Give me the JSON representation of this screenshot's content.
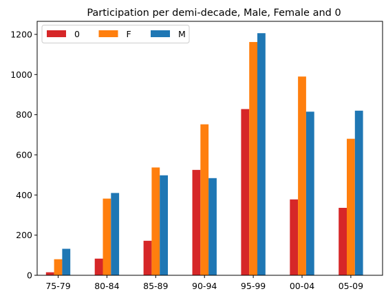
{
  "chart_data": {
    "type": "bar",
    "title": "Participation per demi-decade, Male, Female and 0",
    "xlabel": "",
    "ylabel": "",
    "categories": [
      "75-79",
      "80-84",
      "85-89",
      "90-94",
      "95-99",
      "00-04",
      "05-09"
    ],
    "series": [
      {
        "name": "0",
        "color": "#d62728",
        "values": [
          15,
          83,
          172,
          525,
          828,
          378,
          336
        ]
      },
      {
        "name": "F",
        "color": "#ff7f0e",
        "values": [
          80,
          382,
          537,
          752,
          1162,
          990,
          680
        ]
      },
      {
        "name": "M",
        "color": "#1f77b4",
        "values": [
          132,
          410,
          498,
          484,
          1206,
          815,
          820
        ]
      }
    ],
    "ylim": [
      0,
      1265
    ],
    "yticks": [
      "0",
      "200",
      "400",
      "600",
      "800",
      "1000",
      "1200"
    ],
    "legend": {
      "position": "top-left",
      "columns": 3
    },
    "grid": false
  }
}
